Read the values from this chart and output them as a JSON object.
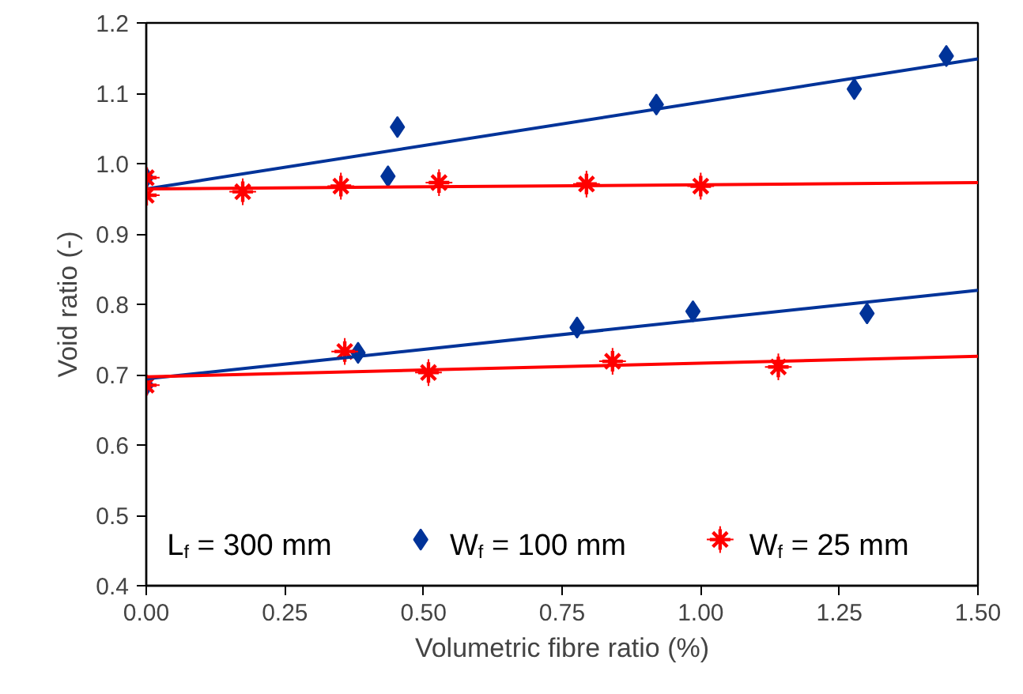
{
  "chart_data": {
    "type": "scatter",
    "xlabel": "Volumetric fibre ratio (%)",
    "ylabel": "Void ratio (-)",
    "annotations": [
      "L$_{f}$ = 300 mm"
    ],
    "series": [
      {
        "name": "W$_{f}$ = 100 mm",
        "color": "#003399",
        "marker": "diamond",
        "x": [
          0,
          0.436,
          0.453,
          0.92,
          1.277,
          1.443,
          0,
          0.382,
          0.777,
          0.986,
          1.3
        ],
        "values": [
          0.98,
          0.982,
          1.052,
          1.084,
          1.106,
          1.153,
          0.685,
          0.731,
          0.767,
          0.79,
          0.787
        ]
      },
      {
        "name": "W$_{f}$ = 25 mm",
        "color": "#ff0000",
        "marker": "cross",
        "x": [
          0,
          0,
          0.174,
          0.351,
          0.528,
          0.794,
          1.0,
          0,
          0.358,
          0.509,
          0.841,
          1.14
        ],
        "values": [
          0.98,
          0.955,
          0.96,
          0.968,
          0.973,
          0.971,
          0.968,
          0.685,
          0.733,
          0.703,
          0.719,
          0.711
        ]
      },
      {
        "type": "line",
        "color": "#003399",
        "x": [
          0,
          1.5
        ],
        "values": [
          0.964,
          1.149
        ]
      },
      {
        "type": "line",
        "color": "#ff0000",
        "x": [
          0,
          1.5
        ],
        "values": [
          0.964,
          0.973
        ]
      },
      {
        "type": "line",
        "color": "#003399",
        "x": [
          0,
          1.5
        ],
        "values": [
          0.694,
          0.82
        ]
      },
      {
        "type": "line",
        "color": "#ff0000",
        "x": [
          0,
          1.5
        ],
        "values": [
          0.697,
          0.726
        ]
      }
    ],
    "xlim": [
      0,
      1.5
    ],
    "ylim": [
      0.4,
      1.2
    ],
    "xticks": [
      {
        "value": 0,
        "label": "0.00"
      },
      {
        "value": 0.25,
        "label": "0.25"
      },
      {
        "value": 0.5,
        "label": "0.50"
      },
      {
        "value": 0.75,
        "label": "0.75"
      },
      {
        "value": 1.0,
        "label": "1.00"
      },
      {
        "value": 1.25,
        "label": "1.25"
      },
      {
        "value": 1.5,
        "label": "1.50"
      }
    ],
    "yticks": [
      0.4,
      0.5,
      0.6,
      0.7,
      0.8,
      0.9,
      {
        "value": 1.0,
        "label": "1.0"
      },
      1.1,
      1.2
    ],
    "grid": false,
    "legend": "bottom",
    "line_style": "solid"
  }
}
